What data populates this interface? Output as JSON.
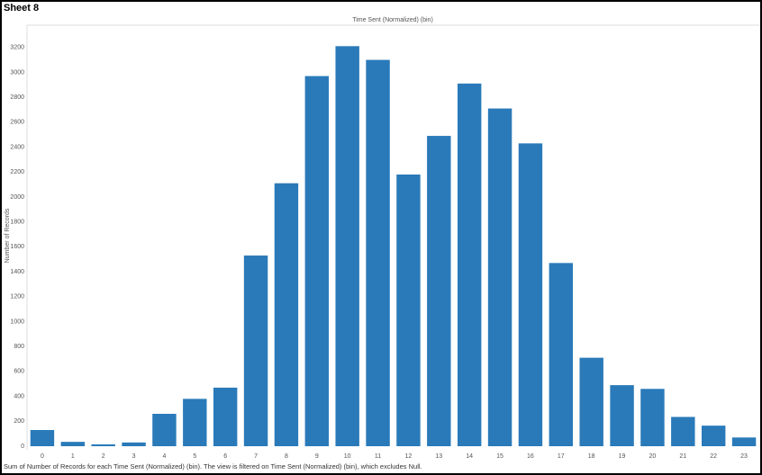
{
  "sheet_title": "Sheet 8",
  "chart_data": {
    "type": "bar",
    "x_label": "Time Sent (Normalized) (bin)",
    "y_label": "Number of Records",
    "caption": "Sum of Number of Records for each Time Sent (Normalized) (bin). The view is filtered on Time Sent (Normalized) (bin), which excludes Null.",
    "categories": [
      "0",
      "1",
      "2",
      "3",
      "4",
      "5",
      "6",
      "7",
      "8",
      "9",
      "10",
      "11",
      "12",
      "13",
      "14",
      "15",
      "16",
      "17",
      "18",
      "19",
      "20",
      "21",
      "22",
      "23"
    ],
    "values": [
      130,
      35,
      15,
      30,
      260,
      380,
      470,
      1530,
      2110,
      2970,
      3210,
      3100,
      2180,
      2490,
      2910,
      2710,
      2430,
      1470,
      710,
      490,
      460,
      235,
      165,
      70
    ],
    "color": "#2a7ab9",
    "ylim": [
      0,
      3400
    ],
    "yticks": [
      0,
      200,
      400,
      600,
      800,
      1000,
      1200,
      1400,
      1600,
      1800,
      2000,
      2200,
      2400,
      2600,
      2800,
      3000,
      3200
    ],
    "grid": false
  }
}
